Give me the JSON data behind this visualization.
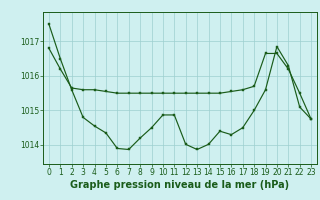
{
  "title": "Graphe pression niveau de la mer (hPa)",
  "bg_color": "#cff0f0",
  "line_color": "#1a5c1a",
  "grid_color": "#9dcfcf",
  "series1": {
    "x": [
      0,
      1,
      2,
      3,
      4,
      5,
      6,
      7,
      8,
      9,
      10,
      11,
      12,
      13,
      14,
      15,
      16,
      17,
      18,
      19,
      20,
      21,
      22,
      23
    ],
    "y": [
      1016.8,
      1016.2,
      1015.65,
      1015.6,
      1015.6,
      1015.55,
      1015.5,
      1015.5,
      1015.5,
      1015.5,
      1015.5,
      1015.5,
      1015.5,
      1015.5,
      1015.5,
      1015.5,
      1015.55,
      1015.6,
      1015.7,
      1016.65,
      1016.65,
      1016.2,
      1015.5,
      1014.75
    ]
  },
  "series2": {
    "x": [
      0,
      1,
      2,
      3,
      4,
      5,
      6,
      7,
      8,
      9,
      10,
      11,
      12,
      13,
      14,
      15,
      16,
      17,
      18,
      19,
      20,
      21,
      22,
      23
    ],
    "y": [
      1017.5,
      1016.5,
      1015.6,
      1014.8,
      1014.55,
      1014.35,
      1013.9,
      1013.87,
      1014.2,
      1014.5,
      1014.87,
      1014.87,
      1014.02,
      1013.87,
      1014.02,
      1014.4,
      1014.3,
      1014.5,
      1015.0,
      1015.6,
      1016.85,
      1016.3,
      1015.1,
      1014.75
    ]
  },
  "xlim": [
    -0.5,
    23.5
  ],
  "ylim": [
    1013.45,
    1017.85
  ],
  "ytick_positions": [
    1014,
    1015,
    1016,
    1017
  ],
  "ytick_labels": [
    "1014",
    "1015",
    "1016",
    "1017"
  ],
  "xticks": [
    0,
    1,
    2,
    3,
    4,
    5,
    6,
    7,
    8,
    9,
    10,
    11,
    12,
    13,
    14,
    15,
    16,
    17,
    18,
    19,
    20,
    21,
    22,
    23
  ],
  "tick_fontsize": 5.5,
  "title_fontsize": 7.0,
  "marker_size": 2.0,
  "line_width": 0.85
}
